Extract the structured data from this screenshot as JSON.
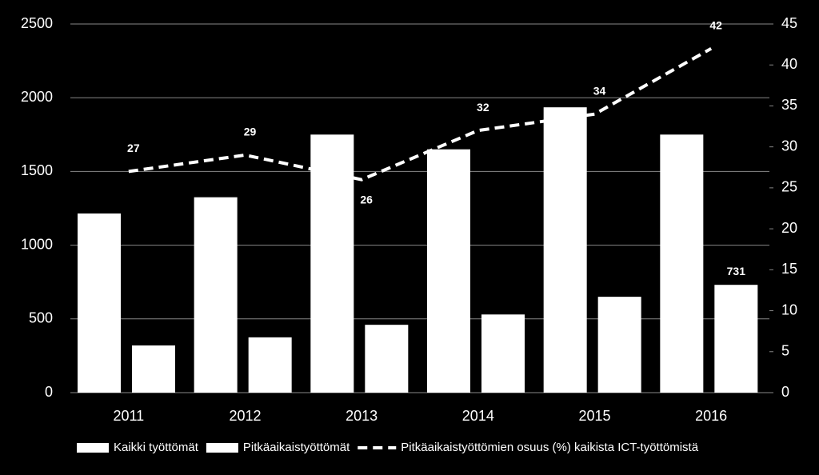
{
  "chart_data": {
    "type": "bar-line",
    "categories": [
      "2011",
      "2012",
      "2013",
      "2014",
      "2015",
      "2016"
    ],
    "series": [
      {
        "name": "Kaikki työttömät",
        "type": "bar",
        "color": "#ffffff",
        "values": [
          1215,
          1325,
          1750,
          1650,
          1935,
          1750
        ]
      },
      {
        "name": "Pitkäaikaistyöttömät",
        "type": "bar",
        "color": "#ffffff",
        "values": [
          320,
          375,
          460,
          530,
          650,
          731
        ],
        "value_labels": [
          null,
          null,
          null,
          null,
          null,
          "731"
        ]
      },
      {
        "name": "Pitkäaikaistyöttömien osuus (%) kaikista ICT-työttömistä",
        "type": "line",
        "axis": "y2",
        "color": "#ffffff",
        "dashed": true,
        "show_values": true,
        "values": [
          27,
          29,
          26,
          32,
          34,
          42
        ]
      }
    ],
    "ylim": [
      0,
      2500
    ],
    "yticks": [
      0,
      500,
      1000,
      1500,
      2000,
      2500
    ],
    "y2lim": [
      0,
      45
    ],
    "y2ticks": [
      0,
      5,
      10,
      15,
      20,
      25,
      30,
      35,
      40,
      45
    ],
    "grid": true,
    "background": "#000000",
    "legend": "bottom"
  }
}
